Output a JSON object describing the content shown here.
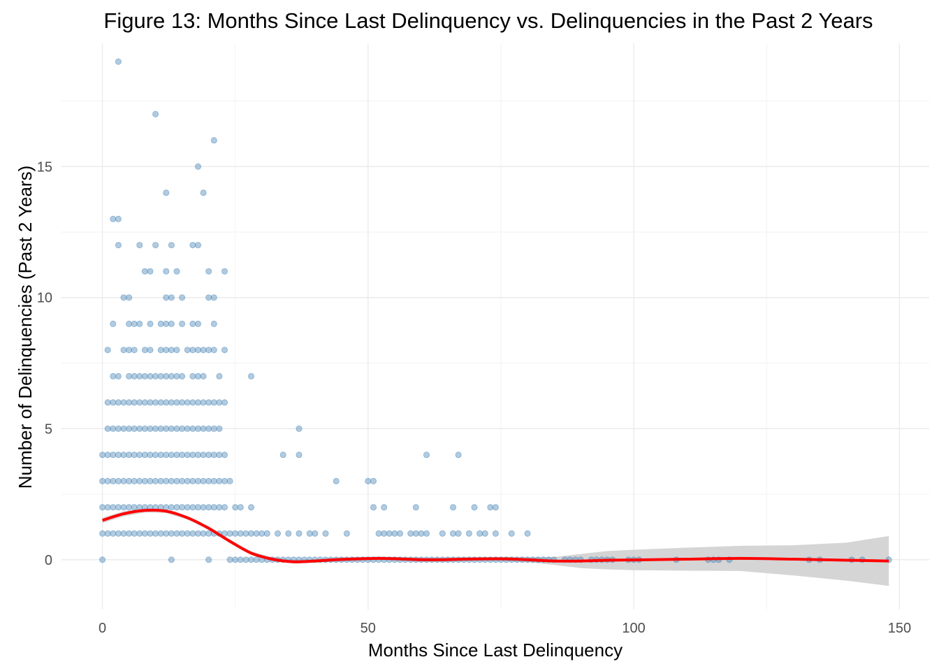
{
  "chart_data": {
    "type": "scatter",
    "title": "Figure 13: Months Since Last Delinquency vs. Delinquencies in the Past 2 Years",
    "xlabel": "Months Since Last Delinquency",
    "ylabel": "Number of Delinquencies (Past 2 Years)",
    "xlim": [
      -7.7,
      155.6
    ],
    "ylim": [
      -1.9,
      19.7
    ],
    "xticks": [
      0,
      50,
      100,
      150
    ],
    "xtick_labels": [
      "0",
      "50",
      "100",
      "150"
    ],
    "yticks": [
      0,
      5,
      10,
      15
    ],
    "ytick_labels": [
      "0",
      "5",
      "10",
      "15"
    ],
    "grid": true,
    "legend": "none",
    "colors": {
      "points": "#4682b4",
      "smooth": "#ff0000",
      "ribbon": "#d3d3d3"
    },
    "points": [
      [
        0,
        0
      ],
      [
        13,
        0
      ],
      [
        20,
        0
      ],
      [
        3,
        19
      ],
      [
        10,
        17
      ],
      [
        21,
        16
      ],
      [
        18,
        15
      ],
      [
        12,
        14
      ],
      [
        19,
        14
      ],
      [
        2,
        13
      ],
      [
        3,
        13
      ],
      [
        3,
        12
      ],
      [
        7,
        12
      ],
      [
        10,
        12
      ],
      [
        13,
        12
      ],
      [
        17,
        12
      ],
      [
        18,
        12
      ],
      [
        8,
        11
      ],
      [
        9,
        11
      ],
      [
        12,
        11
      ],
      [
        14,
        11
      ],
      [
        20,
        11
      ],
      [
        23,
        11
      ],
      [
        4,
        10
      ],
      [
        5,
        10
      ],
      [
        12,
        10
      ],
      [
        13,
        10
      ],
      [
        15,
        10
      ],
      [
        20,
        10
      ],
      [
        21,
        10
      ],
      [
        2,
        9
      ],
      [
        5,
        9
      ],
      [
        6,
        9
      ],
      [
        7,
        9
      ],
      [
        9,
        9
      ],
      [
        11,
        9
      ],
      [
        12,
        9
      ],
      [
        13,
        9
      ],
      [
        15,
        9
      ],
      [
        17,
        9
      ],
      [
        18,
        9
      ],
      [
        21,
        9
      ],
      [
        1,
        8
      ],
      [
        4,
        8
      ],
      [
        5,
        8
      ],
      [
        6,
        8
      ],
      [
        8,
        8
      ],
      [
        9,
        8
      ],
      [
        11,
        8
      ],
      [
        12,
        8
      ],
      [
        13,
        8
      ],
      [
        14,
        8
      ],
      [
        16,
        8
      ],
      [
        17,
        8
      ],
      [
        18,
        8
      ],
      [
        19,
        8
      ],
      [
        20,
        8
      ],
      [
        21,
        8
      ],
      [
        23,
        8
      ],
      [
        2,
        7
      ],
      [
        3,
        7
      ],
      [
        5,
        7
      ],
      [
        6,
        7
      ],
      [
        7,
        7
      ],
      [
        8,
        7
      ],
      [
        9,
        7
      ],
      [
        10,
        7
      ],
      [
        11,
        7
      ],
      [
        12,
        7
      ],
      [
        13,
        7
      ],
      [
        14,
        7
      ],
      [
        15,
        7
      ],
      [
        17,
        7
      ],
      [
        18,
        7
      ],
      [
        19,
        7
      ],
      [
        22,
        7
      ],
      [
        28,
        7
      ],
      [
        1,
        6
      ],
      [
        2,
        6
      ],
      [
        3,
        6
      ],
      [
        4,
        6
      ],
      [
        5,
        6
      ],
      [
        6,
        6
      ],
      [
        7,
        6
      ],
      [
        8,
        6
      ],
      [
        9,
        6
      ],
      [
        10,
        6
      ],
      [
        11,
        6
      ],
      [
        12,
        6
      ],
      [
        13,
        6
      ],
      [
        14,
        6
      ],
      [
        15,
        6
      ],
      [
        16,
        6
      ],
      [
        17,
        6
      ],
      [
        18,
        6
      ],
      [
        19,
        6
      ],
      [
        20,
        6
      ],
      [
        21,
        6
      ],
      [
        22,
        6
      ],
      [
        23,
        6
      ],
      [
        1,
        5
      ],
      [
        2,
        5
      ],
      [
        3,
        5
      ],
      [
        4,
        5
      ],
      [
        5,
        5
      ],
      [
        6,
        5
      ],
      [
        7,
        5
      ],
      [
        8,
        5
      ],
      [
        9,
        5
      ],
      [
        10,
        5
      ],
      [
        11,
        5
      ],
      [
        12,
        5
      ],
      [
        13,
        5
      ],
      [
        14,
        5
      ],
      [
        15,
        5
      ],
      [
        16,
        5
      ],
      [
        17,
        5
      ],
      [
        18,
        5
      ],
      [
        19,
        5
      ],
      [
        20,
        5
      ],
      [
        21,
        5
      ],
      [
        22,
        5
      ],
      [
        37,
        5
      ],
      [
        0,
        4
      ],
      [
        1,
        4
      ],
      [
        2,
        4
      ],
      [
        3,
        4
      ],
      [
        4,
        4
      ],
      [
        5,
        4
      ],
      [
        6,
        4
      ],
      [
        7,
        4
      ],
      [
        8,
        4
      ],
      [
        9,
        4
      ],
      [
        10,
        4
      ],
      [
        11,
        4
      ],
      [
        12,
        4
      ],
      [
        13,
        4
      ],
      [
        14,
        4
      ],
      [
        15,
        4
      ],
      [
        16,
        4
      ],
      [
        17,
        4
      ],
      [
        18,
        4
      ],
      [
        19,
        4
      ],
      [
        20,
        4
      ],
      [
        21,
        4
      ],
      [
        22,
        4
      ],
      [
        23,
        4
      ],
      [
        34,
        4
      ],
      [
        37,
        4
      ],
      [
        61,
        4
      ],
      [
        67,
        4
      ],
      [
        0,
        3
      ],
      [
        1,
        3
      ],
      [
        2,
        3
      ],
      [
        3,
        3
      ],
      [
        4,
        3
      ],
      [
        5,
        3
      ],
      [
        6,
        3
      ],
      [
        7,
        3
      ],
      [
        8,
        3
      ],
      [
        9,
        3
      ],
      [
        10,
        3
      ],
      [
        11,
        3
      ],
      [
        12,
        3
      ],
      [
        13,
        3
      ],
      [
        14,
        3
      ],
      [
        15,
        3
      ],
      [
        16,
        3
      ],
      [
        17,
        3
      ],
      [
        18,
        3
      ],
      [
        19,
        3
      ],
      [
        20,
        3
      ],
      [
        21,
        3
      ],
      [
        22,
        3
      ],
      [
        23,
        3
      ],
      [
        24,
        3
      ],
      [
        44,
        3
      ],
      [
        50,
        3
      ],
      [
        51,
        3
      ],
      [
        0,
        2
      ],
      [
        1,
        2
      ],
      [
        2,
        2
      ],
      [
        3,
        2
      ],
      [
        4,
        2
      ],
      [
        5,
        2
      ],
      [
        6,
        2
      ],
      [
        7,
        2
      ],
      [
        8,
        2
      ],
      [
        9,
        2
      ],
      [
        10,
        2
      ],
      [
        11,
        2
      ],
      [
        12,
        2
      ],
      [
        13,
        2
      ],
      [
        14,
        2
      ],
      [
        15,
        2
      ],
      [
        16,
        2
      ],
      [
        17,
        2
      ],
      [
        18,
        2
      ],
      [
        19,
        2
      ],
      [
        20,
        2
      ],
      [
        21,
        2
      ],
      [
        22,
        2
      ],
      [
        23,
        2
      ],
      [
        25,
        2
      ],
      [
        26,
        2
      ],
      [
        28,
        2
      ],
      [
        51,
        2
      ],
      [
        53,
        2
      ],
      [
        59,
        2
      ],
      [
        66,
        2
      ],
      [
        70,
        2
      ],
      [
        73,
        2
      ],
      [
        74,
        2
      ],
      [
        0,
        1
      ],
      [
        1,
        1
      ],
      [
        2,
        1
      ],
      [
        3,
        1
      ],
      [
        4,
        1
      ],
      [
        5,
        1
      ],
      [
        6,
        1
      ],
      [
        7,
        1
      ],
      [
        8,
        1
      ],
      [
        9,
        1
      ],
      [
        10,
        1
      ],
      [
        11,
        1
      ],
      [
        12,
        1
      ],
      [
        13,
        1
      ],
      [
        14,
        1
      ],
      [
        15,
        1
      ],
      [
        16,
        1
      ],
      [
        17,
        1
      ],
      [
        18,
        1
      ],
      [
        19,
        1
      ],
      [
        20,
        1
      ],
      [
        21,
        1
      ],
      [
        22,
        1
      ],
      [
        23,
        1
      ],
      [
        24,
        1
      ],
      [
        25,
        1
      ],
      [
        26,
        1
      ],
      [
        27,
        1
      ],
      [
        28,
        1
      ],
      [
        29,
        1
      ],
      [
        30,
        1
      ],
      [
        31,
        1
      ],
      [
        33,
        1
      ],
      [
        35,
        1
      ],
      [
        37,
        1
      ],
      [
        39,
        1
      ],
      [
        40,
        1
      ],
      [
        42,
        1
      ],
      [
        46,
        1
      ],
      [
        52,
        1
      ],
      [
        53,
        1
      ],
      [
        54,
        1
      ],
      [
        55,
        1
      ],
      [
        56,
        1
      ],
      [
        58,
        1
      ],
      [
        59,
        1
      ],
      [
        60,
        1
      ],
      [
        61,
        1
      ],
      [
        64,
        1
      ],
      [
        66,
        1
      ],
      [
        67,
        1
      ],
      [
        69,
        1
      ],
      [
        71,
        1
      ],
      [
        72,
        1
      ],
      [
        74,
        1
      ],
      [
        77,
        1
      ],
      [
        80,
        1
      ],
      [
        24,
        0
      ],
      [
        25,
        0
      ],
      [
        26,
        0
      ],
      [
        27,
        0
      ],
      [
        28,
        0
      ],
      [
        29,
        0
      ],
      [
        30,
        0
      ],
      [
        31,
        0
      ],
      [
        32,
        0
      ],
      [
        33,
        0
      ],
      [
        34,
        0
      ],
      [
        35,
        0
      ],
      [
        36,
        0
      ],
      [
        37,
        0
      ],
      [
        38,
        0
      ],
      [
        39,
        0
      ],
      [
        40,
        0
      ],
      [
        41,
        0
      ],
      [
        42,
        0
      ],
      [
        43,
        0
      ],
      [
        44,
        0
      ],
      [
        45,
        0
      ],
      [
        46,
        0
      ],
      [
        47,
        0
      ],
      [
        48,
        0
      ],
      [
        49,
        0
      ],
      [
        50,
        0
      ],
      [
        51,
        0
      ],
      [
        52,
        0
      ],
      [
        53,
        0
      ],
      [
        54,
        0
      ],
      [
        55,
        0
      ],
      [
        56,
        0
      ],
      [
        57,
        0
      ],
      [
        58,
        0
      ],
      [
        59,
        0
      ],
      [
        60,
        0
      ],
      [
        61,
        0
      ],
      [
        62,
        0
      ],
      [
        63,
        0
      ],
      [
        64,
        0
      ],
      [
        65,
        0
      ],
      [
        66,
        0
      ],
      [
        67,
        0
      ],
      [
        68,
        0
      ],
      [
        69,
        0
      ],
      [
        70,
        0
      ],
      [
        71,
        0
      ],
      [
        72,
        0
      ],
      [
        73,
        0
      ],
      [
        74,
        0
      ],
      [
        75,
        0
      ],
      [
        76,
        0
      ],
      [
        77,
        0
      ],
      [
        78,
        0
      ],
      [
        79,
        0
      ],
      [
        80,
        0
      ],
      [
        81,
        0
      ],
      [
        82,
        0
      ],
      [
        83,
        0
      ],
      [
        84,
        0
      ],
      [
        85,
        0
      ],
      [
        87,
        0
      ],
      [
        88,
        0
      ],
      [
        89,
        0
      ],
      [
        90,
        0
      ],
      [
        92,
        0
      ],
      [
        93,
        0
      ],
      [
        94,
        0
      ],
      [
        95,
        0
      ],
      [
        96,
        0
      ],
      [
        99,
        0
      ],
      [
        100,
        0
      ],
      [
        101,
        0
      ],
      [
        108,
        0
      ],
      [
        114,
        0
      ],
      [
        115,
        0
      ],
      [
        116,
        0
      ],
      [
        118,
        0
      ],
      [
        133,
        0
      ],
      [
        135,
        0
      ],
      [
        141,
        0
      ],
      [
        143,
        0
      ],
      [
        148,
        0
      ]
    ],
    "smooth": {
      "x": [
        0,
        4,
        8,
        12,
        16,
        20,
        24,
        28,
        32,
        36,
        40,
        44,
        48,
        52,
        56,
        60,
        64,
        68,
        72,
        76,
        80,
        85,
        90,
        95,
        100,
        110,
        120,
        130,
        140,
        148
      ],
      "y": [
        1.5,
        1.75,
        1.88,
        1.85,
        1.6,
        1.2,
        0.7,
        0.25,
        0.02,
        -0.08,
        -0.05,
        0.0,
        0.03,
        0.05,
        0.03,
        0.0,
        0.0,
        0.02,
        0.03,
        0.03,
        0.0,
        -0.05,
        -0.05,
        -0.02,
        -0.01,
        0.02,
        0.05,
        0.02,
        -0.02,
        -0.05
      ],
      "lower": [
        1.4,
        1.65,
        1.8,
        1.78,
        1.53,
        1.13,
        0.63,
        0.18,
        -0.05,
        -0.15,
        -0.12,
        -0.07,
        -0.04,
        -0.02,
        -0.04,
        -0.07,
        -0.07,
        -0.05,
        -0.04,
        -0.05,
        -0.09,
        -0.2,
        -0.32,
        -0.37,
        -0.4,
        -0.42,
        -0.43,
        -0.6,
        -0.8,
        -1.0
      ],
      "upper": [
        1.6,
        1.85,
        1.96,
        1.92,
        1.67,
        1.27,
        0.77,
        0.32,
        0.09,
        -0.01,
        0.02,
        0.07,
        0.1,
        0.12,
        0.1,
        0.07,
        0.07,
        0.09,
        0.1,
        0.11,
        0.09,
        0.1,
        0.22,
        0.33,
        0.38,
        0.46,
        0.53,
        0.55,
        0.65,
        0.9
      ]
    }
  }
}
